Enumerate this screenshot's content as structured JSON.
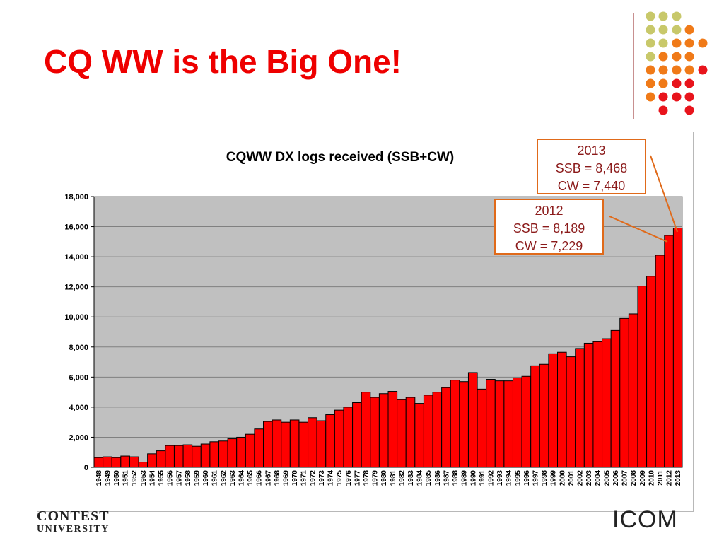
{
  "slide": {
    "title": "CQ WW is the Big One!",
    "logo_left_line1": "CONTEST",
    "logo_left_line2": "UNIVERSITY",
    "logo_right": "ICOM"
  },
  "decoration": {
    "dot_colors": {
      "olive": "#c8c86a",
      "orange": "#f07a18",
      "red": "#e8141c",
      "divider": "#c89090"
    }
  },
  "callouts": [
    {
      "year": "2013",
      "ssb": "SSB = 8,468",
      "cw": "CW = 7,440"
    },
    {
      "year": "2012",
      "ssb": "SSB = 8,189",
      "cw": "CW = 7,229"
    }
  ],
  "chart_data": {
    "type": "bar",
    "title": "CQWW DX logs received (SSB+CW)",
    "xlabel": "",
    "ylabel": "",
    "ylim": [
      0,
      18000
    ],
    "yticks": [
      0,
      2000,
      4000,
      6000,
      8000,
      10000,
      12000,
      14000,
      16000,
      18000
    ],
    "ytick_labels": [
      "0",
      "2,000",
      "4,000",
      "6,000",
      "8,000",
      "10,000",
      "12,000",
      "14,000",
      "16,000",
      "18,000"
    ],
    "grid": true,
    "legend": "none",
    "bar_color": "#ff0000",
    "plot_background": "#c0c0c0",
    "categories": [
      "1948",
      "1949",
      "1950",
      "1951",
      "1952",
      "1953",
      "1954",
      "1955",
      "1956",
      "1957",
      "1958",
      "1959",
      "1960",
      "1961",
      "1962",
      "1963",
      "1964",
      "1965",
      "1966",
      "1967",
      "1968",
      "1969",
      "1970",
      "1971",
      "1972",
      "1973",
      "1974",
      "1975",
      "1976",
      "1977",
      "1978",
      "1979",
      "1980",
      "1981",
      "1982",
      "1983",
      "1984",
      "1985",
      "1986",
      "1987",
      "1988",
      "1989",
      "1990",
      "1991",
      "1992",
      "1993",
      "1994",
      "1995",
      "1996",
      "1997",
      "1998",
      "1999",
      "2000",
      "2001",
      "2002",
      "2003",
      "2004",
      "2005",
      "2006",
      "2007",
      "2008",
      "2009",
      "2010",
      "2011",
      "2012",
      "2013"
    ],
    "values": [
      650,
      700,
      650,
      750,
      700,
      350,
      900,
      1100,
      1450,
      1450,
      1500,
      1400,
      1550,
      1700,
      1750,
      1900,
      2000,
      2200,
      2550,
      3050,
      3150,
      3000,
      3150,
      3000,
      3300,
      3100,
      3500,
      3800,
      4000,
      4300,
      5000,
      4650,
      4900,
      5050,
      4500,
      4650,
      4250,
      4800,
      5000,
      5300,
      5800,
      5700,
      6300,
      5200,
      5850,
      5750,
      5750,
      5950,
      6050,
      6750,
      6850,
      7550,
      7650,
      7350,
      7900,
      8250,
      8350,
      8550,
      9100,
      9900,
      10200,
      12050,
      12700,
      14100,
      15418,
      15908
    ]
  }
}
